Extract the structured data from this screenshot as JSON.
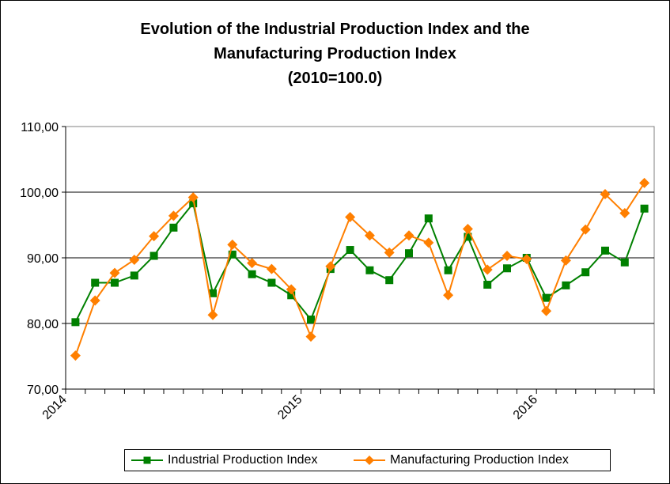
{
  "chart_data": {
    "type": "line",
    "title_lines": [
      "Evolution of the Industrial Production Index and the",
      "Manufacturing Production Index",
      "(2010=100.0)"
    ],
    "ylim": [
      70,
      110
    ],
    "yticks": [
      "70,00",
      "80,00",
      "90,00",
      "100,00",
      "110,00"
    ],
    "ytick_values": [
      70,
      80,
      90,
      100,
      110
    ],
    "xtick_labels": [
      "2014",
      "2015",
      "2016"
    ],
    "xtick_label_month_index": [
      0,
      12,
      24
    ],
    "n_months": 30,
    "grid": "horizontal",
    "legend_position": "bottom",
    "series": [
      {
        "name": "Industrial Production Index",
        "color": "#008000",
        "marker": "square",
        "values": [
          80.2,
          86.2,
          86.2,
          87.3,
          90.3,
          94.6,
          98.3,
          84.6,
          90.5,
          87.5,
          86.2,
          84.3,
          80.6,
          88.3,
          91.2,
          88.1,
          86.6,
          90.7,
          96.0,
          88.1,
          93.2,
          85.9,
          88.4,
          90.0,
          83.9,
          85.8,
          87.8,
          91.1,
          89.3,
          97.5
        ]
      },
      {
        "name": "Manufacturing Production Index",
        "color": "#FF7F00",
        "marker": "diamond",
        "values": [
          75.1,
          83.5,
          87.7,
          89.7,
          93.3,
          96.4,
          99.2,
          81.3,
          92.0,
          89.2,
          88.3,
          85.2,
          78.0,
          88.7,
          96.2,
          93.4,
          90.8,
          93.4,
          92.3,
          84.3,
          94.4,
          88.2,
          90.3,
          89.8,
          81.9,
          89.6,
          94.3,
          99.7,
          96.8,
          101.4
        ]
      }
    ]
  }
}
